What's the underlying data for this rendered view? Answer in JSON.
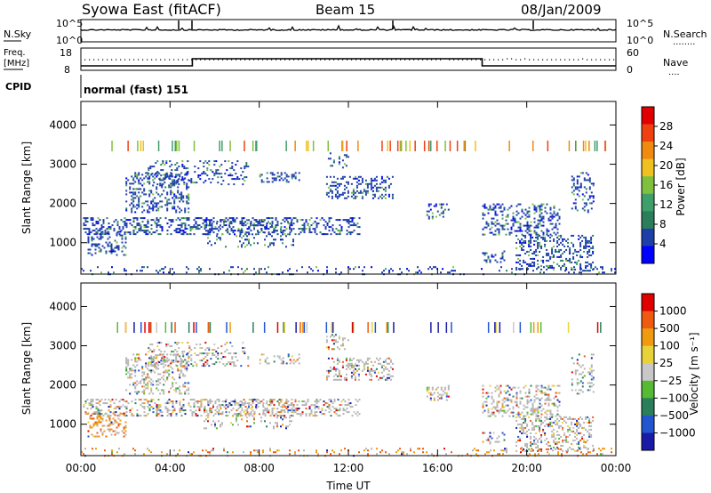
{
  "header": {
    "station": "Syowa East (fitACF)",
    "beam": "Beam 15",
    "date": "08/Jan/2009"
  },
  "side_labels": {
    "nsky": "N.Sky",
    "freq": "Freq.\n[MHz]",
    "cpid": "CPID",
    "nsearch": "N.Search",
    "nave": "Nave",
    "dots": "........",
    "nave_dots": "...."
  },
  "cpid_text": "normal (fast) 151",
  "colors": {
    "power_scale": [
      "#0000ff",
      "#1f3fa8",
      "#2a7f5a",
      "#3f9f6a",
      "#7fc03f",
      "#f0c020",
      "#f08a10",
      "#f04010",
      "#e00000"
    ],
    "velocity_scale": [
      "#1a1aa8",
      "#2255d0",
      "#2a7f5a",
      "#55bb33",
      "#c8c8c8",
      "#e8d23a",
      "#f09a10",
      "#f05a10",
      "#e00000"
    ],
    "ground_scatter": "#b4b4b4"
  },
  "chart_data": [
    {
      "type": "line",
      "panel": "N.Sky / N.Search",
      "y_left_ticks": [
        "10^5",
        "10^0"
      ],
      "y_right_ticks": [
        "10^5",
        "10^0"
      ],
      "xlim": [
        "00:00",
        "24:00"
      ]
    },
    {
      "type": "line",
      "panel": "Freq / Nave",
      "y_left_ticks": [
        "18",
        "8"
      ],
      "y_right_ticks": [
        "60",
        "0"
      ],
      "freq_steps": [
        {
          "from": "00:00",
          "to": "05:00",
          "level": "low"
        },
        {
          "from": "05:00",
          "to": "18:00",
          "level": "high"
        },
        {
          "from": "18:00",
          "to": "24:00",
          "level": "low"
        }
      ]
    },
    {
      "type": "heatmap",
      "panel": "Power",
      "ylabel": "Slant Range [km]",
      "y_ticks": [
        "1000",
        "2000",
        "3000",
        "4000"
      ],
      "ylim": [
        200,
        4600
      ],
      "colorbar_label": "Power [dB]",
      "colorbar_ticks": [
        "28",
        "24",
        "20",
        "16",
        "12",
        "8",
        "4"
      ]
    },
    {
      "type": "heatmap",
      "panel": "Velocity",
      "ylabel": "Slant Range [km]",
      "y_ticks": [
        "1000",
        "2000",
        "3000",
        "4000"
      ],
      "ylim": [
        200,
        4600
      ],
      "colorbar_label": "Velocity [m s⁻¹]",
      "colorbar_ticks": [
        "1000",
        "500",
        "100",
        "25",
        "−25",
        "−100",
        "−500",
        "−1000"
      ]
    }
  ],
  "x_axis": {
    "label": "Time UT",
    "ticks": [
      "00:00",
      "04:00",
      "08:00",
      "12:00",
      "16:00",
      "20:00",
      "00:00"
    ]
  },
  "echo_regions": [
    {
      "t0": 0.1,
      "t1": 12.5,
      "r0": 1200,
      "r1": 1650,
      "density": 0.62
    },
    {
      "t0": 2.0,
      "t1": 4.8,
      "r0": 1800,
      "r1": 2800,
      "density": 0.55
    },
    {
      "t0": 3.0,
      "t1": 7.5,
      "r0": 2500,
      "r1": 3100,
      "density": 0.35
    },
    {
      "t0": 0.3,
      "t1": 2.0,
      "r0": 700,
      "r1": 1300,
      "density": 0.5
    },
    {
      "t0": 5.5,
      "t1": 9.5,
      "r0": 900,
      "r1": 1600,
      "density": 0.3
    },
    {
      "t0": 8.0,
      "t1": 9.8,
      "r0": 2550,
      "r1": 2800,
      "density": 0.45
    },
    {
      "t0": 11.0,
      "t1": 14.0,
      "r0": 2150,
      "r1": 2700,
      "density": 0.55
    },
    {
      "t0": 11.0,
      "t1": 12.0,
      "r0": 2900,
      "r1": 3300,
      "density": 0.45
    },
    {
      "t0": 15.5,
      "t1": 16.5,
      "r0": 1600,
      "r1": 2000,
      "density": 0.5
    },
    {
      "t0": 18.0,
      "t1": 21.5,
      "r0": 1200,
      "r1": 2000,
      "density": 0.55
    },
    {
      "t0": 18.0,
      "t1": 19.0,
      "r0": 500,
      "r1": 800,
      "density": 0.45
    },
    {
      "t0": 19.5,
      "t1": 23.0,
      "r0": 300,
      "r1": 1200,
      "density": 0.55
    },
    {
      "t0": 22.0,
      "t1": 23.0,
      "r0": 1800,
      "r1": 2800,
      "density": 0.45
    },
    {
      "t0": 0.0,
      "t1": 24.0,
      "r0": 200,
      "r1": 400,
      "density": 0.22
    }
  ]
}
